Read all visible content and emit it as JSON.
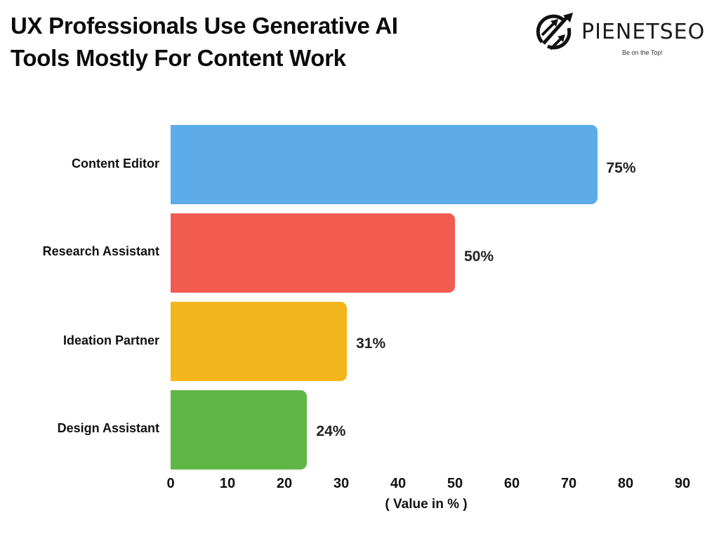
{
  "title_lines": [
    "UX Professionals Use Generative AI",
    "Tools Mostly For Content Work"
  ],
  "logo": {
    "name": "PIENETSEO",
    "tagline": "Be on the Top!",
    "icon": "growth-arrows-icon"
  },
  "chart_data": {
    "type": "bar",
    "orientation": "horizontal",
    "title": "UX Professionals Use Generative AI Tools Mostly For Content Work",
    "categories": [
      "Content Editor",
      "Research Assistant",
      "Ideation Partner",
      "Design Assistant"
    ],
    "values": [
      75,
      50,
      31,
      24
    ],
    "value_labels": [
      "75%",
      "50%",
      "31%",
      "24%"
    ],
    "colors": [
      "#5DABE8",
      "#F25B50",
      "#F4B61D",
      "#60B645"
    ],
    "xlabel": "( Value in % )",
    "ylabel": "",
    "xlim": [
      0,
      90
    ],
    "xticks": [
      "0",
      "10",
      "20",
      "30",
      "40",
      "50",
      "60",
      "70",
      "80",
      "90"
    ],
    "grid": false,
    "legend": null
  }
}
